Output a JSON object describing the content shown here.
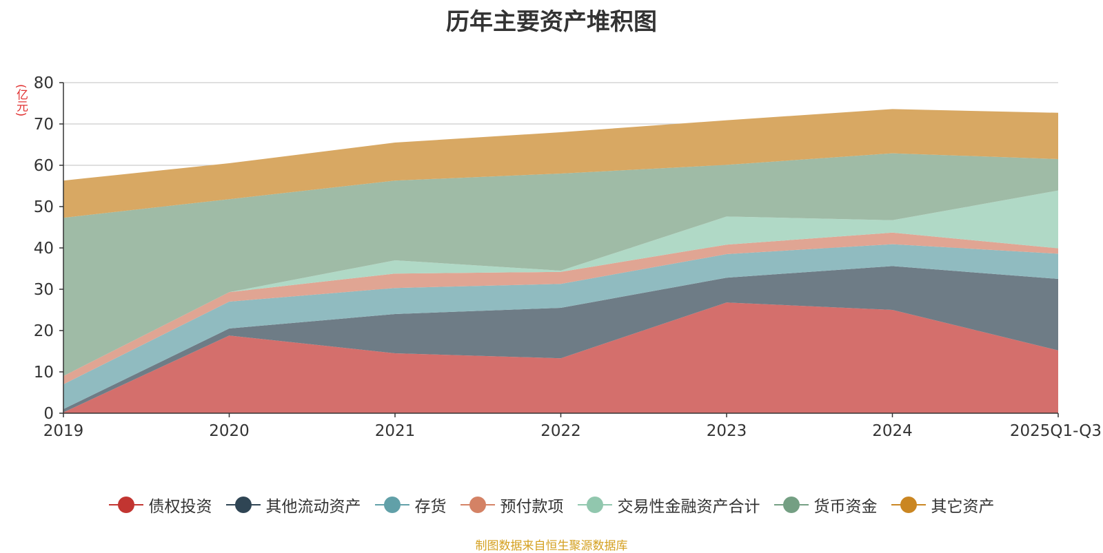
{
  "chart_data": {
    "type": "area",
    "stacked": true,
    "title": "历年主要资产堆积图",
    "unit_label": "(亿元)",
    "categories": [
      "2019",
      "2020",
      "2021",
      "2022",
      "2023",
      "2024",
      "2025Q1-Q3"
    ],
    "ylim": [
      0,
      80
    ],
    "yticks": [
      0,
      10,
      20,
      30,
      40,
      50,
      60,
      70,
      80
    ],
    "grid": true,
    "legend_position": "bottom",
    "series": [
      {
        "name": "债权投资",
        "color": "#c23531",
        "fill": "#d46f6c",
        "values": [
          0.2,
          18.8,
          14.5,
          13.3,
          26.8,
          25.0,
          15.2
        ]
      },
      {
        "name": "其他流动资产",
        "color": "#2f4554",
        "fill": "#6e7c86",
        "values": [
          0.8,
          1.7,
          9.5,
          12.2,
          6.0,
          10.6,
          17.3
        ]
      },
      {
        "name": "存货",
        "color": "#61a0a8",
        "fill": "#90bbc0",
        "values": [
          6.0,
          6.5,
          6.3,
          5.8,
          5.7,
          5.3,
          6.1
        ]
      },
      {
        "name": "预付款项",
        "color": "#d48265",
        "fill": "#e0a593",
        "values": [
          2.0,
          2.3,
          3.5,
          2.9,
          2.3,
          2.8,
          1.3
        ]
      },
      {
        "name": "交易性金融资产合计",
        "color": "#91c7ae",
        "fill": "#b0d9c6",
        "values": [
          0.0,
          0.0,
          3.2,
          0.3,
          6.8,
          3.0,
          14.0
        ]
      },
      {
        "name": "货币资金",
        "color": "#749f83",
        "fill": "#9fbba6",
        "values": [
          38.3,
          22.5,
          19.3,
          23.5,
          12.5,
          16.2,
          7.6
        ]
      },
      {
        "name": "其它资产",
        "color": "#ca8622",
        "fill": "#d8a863",
        "values": [
          9.0,
          8.7,
          9.2,
          10.0,
          10.8,
          10.7,
          11.2
        ]
      }
    ]
  },
  "source_text": "制图数据来自恒生聚源数据库"
}
